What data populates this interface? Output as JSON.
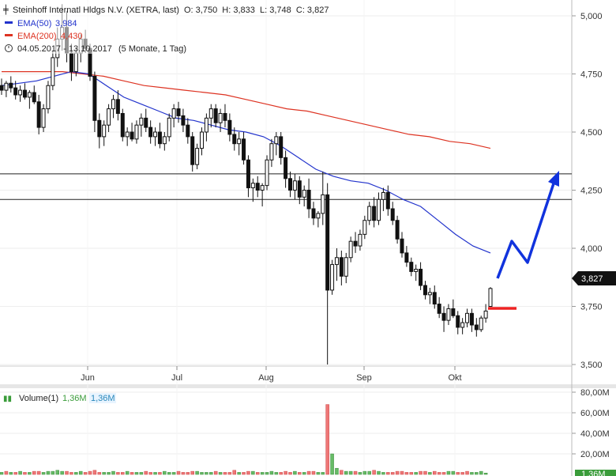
{
  "header": {
    "title": "Steinhoff Internatl Hldgs N.V. (XETRA, last)",
    "ohlc": "O: 3,750  H: 3,833  L: 3,748  C: 3,827",
    "ema50_label": "EMA(50)",
    "ema50_value": "3,984",
    "ema200_label": "EMA(200)",
    "ema200_value": "4,430",
    "range": "04.05.2017 - 13.10.2017",
    "period": "(5 Monate, 1 Tag)"
  },
  "volume_header": {
    "label": "Volume(1)",
    "value1": "1,36M",
    "value2": "1,36M"
  },
  "last_price_badge": "3,827",
  "volume_badge": "1,36M",
  "colors": {
    "ema50": "#2233cc",
    "ema200": "#dd3322",
    "candle": "#111111",
    "annotation_arrow": "#1133dd",
    "annotation_support": "#ee2222",
    "vol_up": "#66bb66",
    "vol_down": "#ee7777"
  },
  "chart_data": {
    "type": "candlestick",
    "price_axis": {
      "ticks": [
        "5,000",
        "4,750",
        "4,500",
        "4,250",
        "4,000",
        "3,750",
        "3,500"
      ],
      "ylim": [
        3.5,
        5.05
      ]
    },
    "volume_axis": {
      "ticks": [
        "80,00M",
        "60,00M",
        "40,00M",
        "20,00M"
      ],
      "ylim": [
        0,
        80
      ]
    },
    "x_labels": [
      "Jun",
      "Jul",
      "Aug",
      "Sep",
      "Okt"
    ],
    "horizontal_lines": [
      4.32,
      4.21
    ],
    "candles": [
      [
        4.7,
        4.73,
        4.66,
        4.68
      ],
      [
        4.68,
        4.72,
        4.65,
        4.71
      ],
      [
        4.71,
        4.74,
        4.67,
        4.69
      ],
      [
        4.69,
        4.72,
        4.64,
        4.66
      ],
      [
        4.66,
        4.7,
        4.63,
        4.68
      ],
      [
        4.68,
        4.71,
        4.64,
        4.65
      ],
      [
        4.65,
        4.68,
        4.6,
        4.67
      ],
      [
        4.67,
        4.7,
        4.62,
        4.63
      ],
      [
        4.63,
        4.66,
        4.49,
        4.52
      ],
      [
        4.52,
        4.62,
        4.5,
        4.6
      ],
      [
        4.6,
        4.72,
        4.58,
        4.7
      ],
      [
        4.7,
        4.85,
        4.68,
        4.82
      ],
      [
        4.82,
        4.95,
        4.78,
        4.9
      ],
      [
        4.9,
        5.05,
        4.85,
        4.95
      ],
      [
        4.95,
        5.02,
        4.8,
        4.84
      ],
      [
        4.84,
        4.88,
        4.72,
        4.76
      ],
      [
        4.76,
        4.86,
        4.74,
        4.84
      ],
      [
        4.84,
        4.92,
        4.8,
        4.9
      ],
      [
        4.9,
        4.94,
        4.84,
        4.86
      ],
      [
        4.86,
        4.88,
        4.72,
        4.74
      ],
      [
        4.74,
        4.76,
        4.5,
        4.55
      ],
      [
        4.55,
        4.58,
        4.43,
        4.48
      ],
      [
        4.48,
        4.55,
        4.44,
        4.53
      ],
      [
        4.53,
        4.62,
        4.5,
        4.6
      ],
      [
        4.6,
        4.66,
        4.56,
        4.64
      ],
      [
        4.64,
        4.68,
        4.55,
        4.58
      ],
      [
        4.58,
        4.6,
        4.46,
        4.48
      ],
      [
        4.48,
        4.52,
        4.44,
        4.5
      ],
      [
        4.5,
        4.54,
        4.46,
        4.47
      ],
      [
        4.47,
        4.55,
        4.45,
        4.53
      ],
      [
        4.53,
        4.58,
        4.48,
        4.56
      ],
      [
        4.56,
        4.6,
        4.5,
        4.52
      ],
      [
        4.52,
        4.55,
        4.45,
        4.48
      ],
      [
        4.48,
        4.52,
        4.44,
        4.5
      ],
      [
        4.5,
        4.54,
        4.43,
        4.45
      ],
      [
        4.45,
        4.5,
        4.42,
        4.48
      ],
      [
        4.48,
        4.58,
        4.46,
        4.56
      ],
      [
        4.56,
        4.62,
        4.52,
        4.6
      ],
      [
        4.6,
        4.63,
        4.54,
        4.57
      ],
      [
        4.57,
        4.6,
        4.5,
        4.53
      ],
      [
        4.53,
        4.56,
        4.45,
        4.48
      ],
      [
        4.48,
        4.5,
        4.33,
        4.36
      ],
      [
        4.36,
        4.45,
        4.34,
        4.43
      ],
      [
        4.43,
        4.52,
        4.4,
        4.5
      ],
      [
        4.5,
        4.58,
        4.46,
        4.56
      ],
      [
        4.56,
        4.62,
        4.52,
        4.6
      ],
      [
        4.6,
        4.62,
        4.52,
        4.54
      ],
      [
        4.54,
        4.6,
        4.5,
        4.58
      ],
      [
        4.58,
        4.62,
        4.52,
        4.55
      ],
      [
        4.55,
        4.58,
        4.46,
        4.49
      ],
      [
        4.49,
        4.52,
        4.42,
        4.45
      ],
      [
        4.45,
        4.5,
        4.4,
        4.47
      ],
      [
        4.47,
        4.5,
        4.36,
        4.38
      ],
      [
        4.38,
        4.4,
        4.22,
        4.26
      ],
      [
        4.26,
        4.3,
        4.2,
        4.28
      ],
      [
        4.28,
        4.31,
        4.22,
        4.25
      ],
      [
        4.25,
        4.28,
        4.18,
        4.27
      ],
      [
        4.27,
        4.4,
        4.25,
        4.38
      ],
      [
        4.38,
        4.47,
        4.35,
        4.45
      ],
      [
        4.45,
        4.5,
        4.4,
        4.48
      ],
      [
        4.48,
        4.5,
        4.36,
        4.39
      ],
      [
        4.39,
        4.42,
        4.26,
        4.3
      ],
      [
        4.3,
        4.33,
        4.22,
        4.25
      ],
      [
        4.25,
        4.32,
        4.21,
        4.29
      ],
      [
        4.29,
        4.31,
        4.19,
        4.22
      ],
      [
        4.22,
        4.27,
        4.18,
        4.25
      ],
      [
        4.25,
        4.3,
        4.13,
        4.17
      ],
      [
        4.17,
        4.2,
        4.1,
        4.13
      ],
      [
        4.13,
        4.16,
        4.09,
        4.15
      ],
      [
        4.15,
        4.33,
        4.1,
        4.23
      ],
      [
        4.23,
        4.28,
        3.5,
        3.82
      ],
      [
        3.82,
        3.95,
        3.8,
        3.93
      ],
      [
        3.93,
        4.0,
        3.86,
        3.96
      ],
      [
        3.96,
        3.99,
        3.84,
        3.88
      ],
      [
        3.88,
        3.98,
        3.85,
        3.96
      ],
      [
        3.96,
        4.05,
        3.94,
        4.03
      ],
      [
        4.03,
        4.07,
        3.98,
        4.01
      ],
      [
        4.01,
        4.08,
        3.99,
        4.06
      ],
      [
        4.06,
        4.14,
        4.04,
        4.12
      ],
      [
        4.12,
        4.2,
        4.1,
        4.18
      ],
      [
        4.18,
        4.22,
        4.09,
        4.12
      ],
      [
        4.12,
        4.24,
        4.1,
        4.21
      ],
      [
        4.21,
        4.26,
        4.16,
        4.24
      ],
      [
        4.24,
        4.27,
        4.14,
        4.17
      ],
      [
        4.17,
        4.2,
        4.1,
        4.12
      ],
      [
        4.12,
        4.14,
        4.02,
        4.04
      ],
      [
        4.04,
        4.07,
        3.96,
        3.98
      ],
      [
        3.98,
        4.01,
        3.92,
        3.94
      ],
      [
        3.94,
        3.96,
        3.88,
        3.9
      ],
      [
        3.9,
        3.93,
        3.86,
        3.91
      ],
      [
        3.91,
        3.94,
        3.82,
        3.84
      ],
      [
        3.84,
        3.86,
        3.78,
        3.8
      ],
      [
        3.8,
        3.83,
        3.76,
        3.81
      ],
      [
        3.81,
        3.84,
        3.74,
        3.76
      ],
      [
        3.76,
        3.79,
        3.7,
        3.72
      ],
      [
        3.72,
        3.75,
        3.64,
        3.69
      ],
      [
        3.69,
        3.76,
        3.67,
        3.74
      ],
      [
        3.74,
        3.78,
        3.7,
        3.71
      ],
      [
        3.71,
        3.73,
        3.63,
        3.66
      ],
      [
        3.66,
        3.7,
        3.63,
        3.68
      ],
      [
        3.68,
        3.74,
        3.66,
        3.72
      ],
      [
        3.72,
        3.74,
        3.64,
        3.67
      ],
      [
        3.67,
        3.7,
        3.62,
        3.65
      ],
      [
        3.65,
        3.71,
        3.64,
        3.7
      ],
      [
        3.7,
        3.76,
        3.68,
        3.73
      ],
      [
        3.75,
        3.833,
        3.748,
        3.827
      ]
    ],
    "ema50": [
      4.7,
      4.71,
      4.72,
      4.74,
      4.76,
      4.75,
      4.7,
      4.65,
      4.62,
      4.59,
      4.56,
      4.55,
      4.53,
      4.51,
      4.5,
      4.48,
      4.44,
      4.39,
      4.34,
      4.31,
      4.29,
      4.28,
      4.25,
      4.21,
      4.18,
      4.12,
      4.06,
      4.01,
      3.98
    ],
    "ema200": [
      4.76,
      4.76,
      4.76,
      4.76,
      4.75,
      4.74,
      4.72,
      4.7,
      4.69,
      4.68,
      4.67,
      4.66,
      4.64,
      4.62,
      4.6,
      4.59,
      4.57,
      4.55,
      4.53,
      4.51,
      4.49,
      4.48,
      4.46,
      4.45,
      4.43
    ],
    "volumes": [
      2,
      3,
      2,
      2,
      3,
      2,
      2,
      3,
      3,
      2,
      3,
      3,
      4,
      3,
      3,
      2,
      2,
      3,
      2,
      3,
      4,
      2,
      2,
      2,
      3,
      2,
      2,
      3,
      2,
      2,
      2,
      3,
      2,
      2,
      2,
      3,
      2,
      2,
      3,
      2,
      2,
      3,
      3,
      2,
      2,
      2,
      3,
      2,
      2,
      2,
      4,
      2,
      2,
      3,
      3,
      2,
      2,
      2,
      3,
      2,
      2,
      3,
      2,
      3,
      2,
      2,
      3,
      3,
      2,
      2,
      68,
      20,
      6,
      4,
      3,
      3,
      3,
      2,
      3,
      3,
      4,
      3,
      2,
      2,
      2,
      3,
      3,
      2,
      2,
      2,
      3,
      3,
      2,
      3,
      2,
      2,
      3,
      3,
      2,
      2,
      3,
      2,
      2,
      3,
      1.36
    ],
    "volume_up": [
      1,
      0,
      1,
      0,
      1,
      0,
      1,
      0,
      0,
      1,
      1,
      1,
      1,
      1,
      0,
      0,
      1,
      1,
      0,
      0,
      0,
      0,
      1,
      1,
      1,
      0,
      0,
      1,
      0,
      1,
      1,
      0,
      0,
      1,
      0,
      1,
      1,
      1,
      0,
      0,
      0,
      0,
      1,
      1,
      1,
      1,
      0,
      1,
      0,
      0,
      0,
      1,
      0,
      0,
      1,
      0,
      1,
      1,
      1,
      1,
      0,
      0,
      0,
      1,
      0,
      1,
      0,
      0,
      1,
      1,
      0,
      1,
      1,
      0,
      1,
      1,
      0,
      1,
      1,
      1,
      0,
      1,
      1,
      0,
      0,
      0,
      0,
      0,
      0,
      1,
      0,
      0,
      1,
      0,
      0,
      0,
      1,
      1,
      0,
      0,
      0,
      1,
      1,
      1,
      1
    ]
  }
}
